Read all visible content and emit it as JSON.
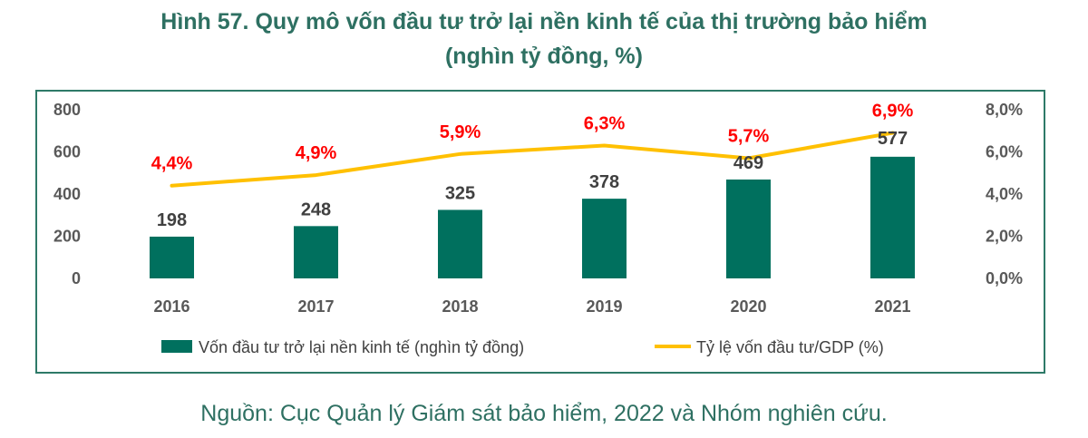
{
  "title": {
    "line1": "Hình 57. Quy mô vốn đầu tư trở lại nền kinh tế của thị trường bảo hiểm",
    "line2": "(nghìn tỷ đồng, %)"
  },
  "source": "Nguồn: Cục Quản lý Giám sát bảo hiểm, 2022 và Nhóm nghiên cứu.",
  "colors": {
    "bar": "#00705e",
    "line": "#ffc000",
    "pct_label": "#ff0000",
    "frame": "#2e7a68",
    "title": "#2e7062"
  },
  "chart_data": {
    "type": "bar",
    "categories": [
      "2016",
      "2017",
      "2018",
      "2019",
      "2020",
      "2021"
    ],
    "series": [
      {
        "name": "Vốn đầu tư trở lại nền kinh tế (nghìn tỷ đồng)",
        "type": "bar",
        "axis": "left",
        "values": [
          198,
          248,
          325,
          378,
          469,
          577
        ],
        "labels": [
          "198",
          "248",
          "325",
          "378",
          "469",
          "577"
        ]
      },
      {
        "name": "Tỷ lệ vốn đầu tư/GDP (%)",
        "type": "line",
        "axis": "right",
        "values": [
          4.4,
          4.9,
          5.9,
          6.3,
          5.7,
          6.9
        ],
        "labels": [
          "4,4%",
          "4,9%",
          "5,9%",
          "6,3%",
          "5,7%",
          "6,9%"
        ]
      }
    ],
    "y_left": {
      "ylim": [
        0,
        800
      ],
      "ticks": [
        "0",
        "200",
        "400",
        "600",
        "800"
      ]
    },
    "y_right": {
      "ylim": [
        0,
        8
      ],
      "ticks": [
        "0,0%",
        "2,0%",
        "4,0%",
        "6,0%",
        "8,0%"
      ]
    },
    "grid": false,
    "legend_position": "bottom"
  }
}
